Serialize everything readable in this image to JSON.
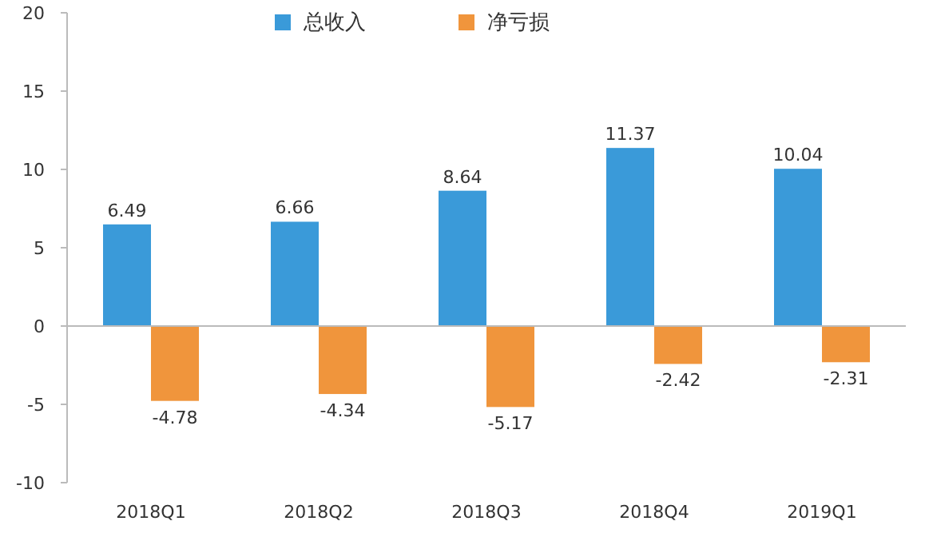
{
  "chart_data": {
    "type": "bar",
    "categories": [
      "2018Q1",
      "2018Q2",
      "2018Q3",
      "2018Q4",
      "2019Q1"
    ],
    "series": [
      {
        "name": "总收入",
        "color": "#3a9ad9",
        "values": [
          6.49,
          6.66,
          8.64,
          11.37,
          10.04
        ]
      },
      {
        "name": "净亏损",
        "color": "#f0953c",
        "values": [
          -4.78,
          -4.34,
          -5.17,
          -2.42,
          -2.31
        ]
      }
    ],
    "ylim": [
      -10,
      20
    ],
    "yticks": [
      -10,
      -5,
      0,
      5,
      10,
      15,
      20
    ],
    "data_labels": true,
    "legend": "top"
  }
}
